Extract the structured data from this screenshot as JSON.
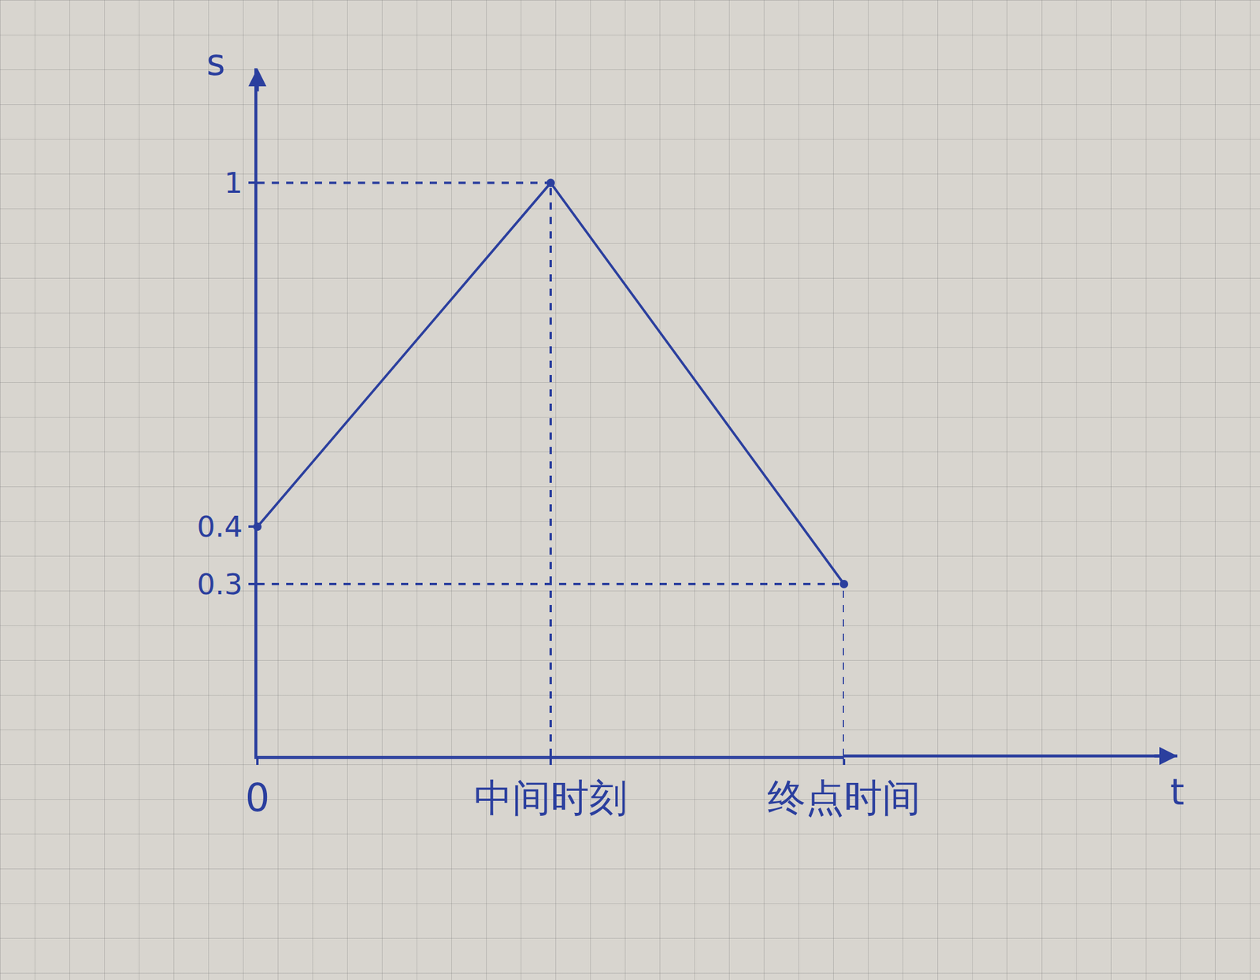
{
  "chart_data": {
    "type": "line",
    "x_label": "t",
    "y_label": "s",
    "categories": [
      "0",
      "中间时刻",
      "终点时间"
    ],
    "values": [
      0.4,
      1,
      0.3
    ],
    "color": "#2b3f9e",
    "ylim": [
      0,
      1.2
    ],
    "yticks": [
      0.3,
      0.4,
      1
    ],
    "grid": false,
    "marker": "circle",
    "line_style": "solid"
  }
}
